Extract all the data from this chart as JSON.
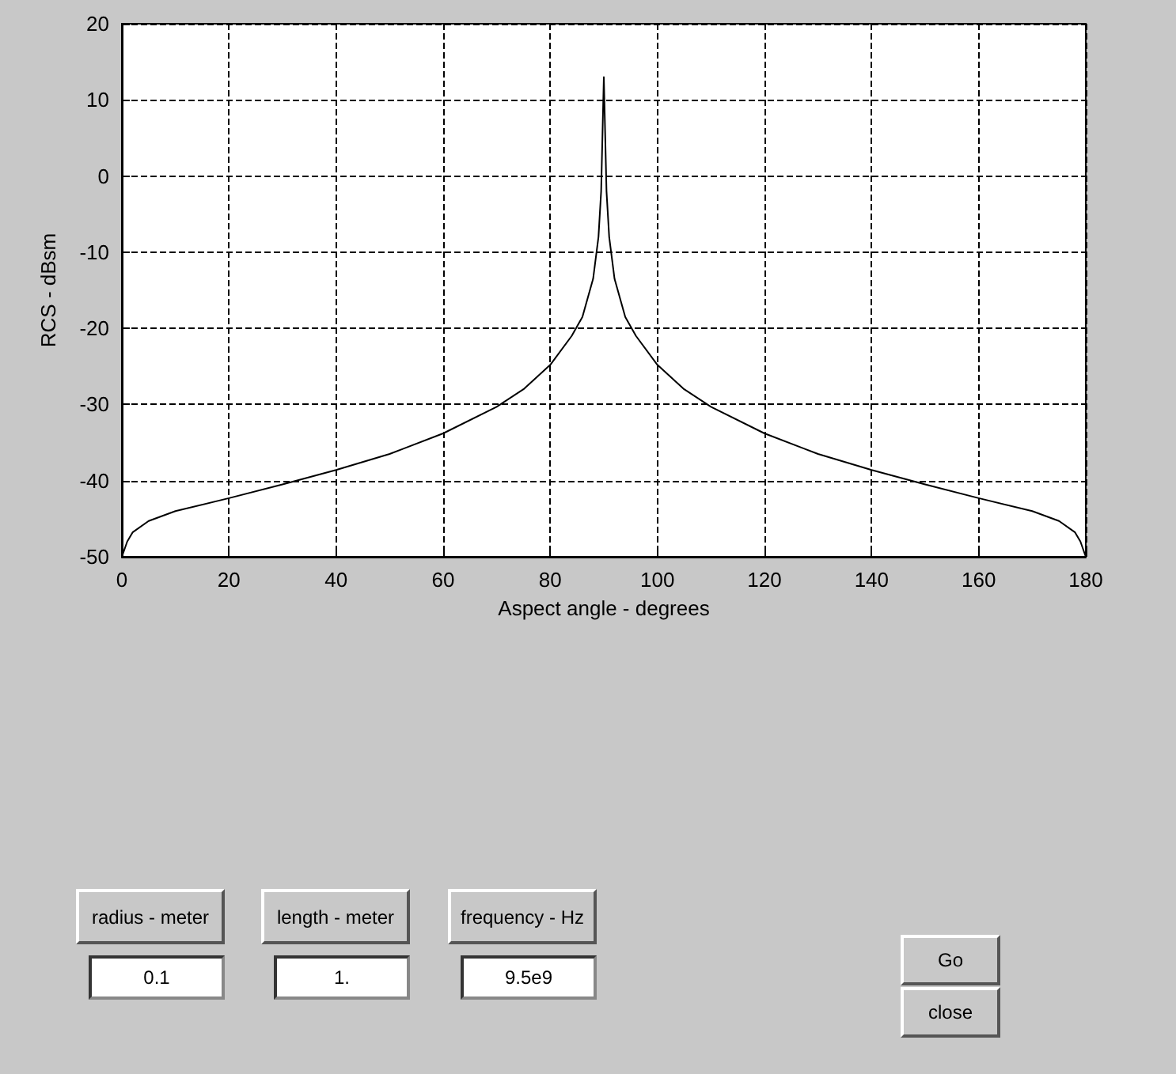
{
  "chart_data": [
    {
      "type": "line",
      "xlabel": "Aspect angle - degrees",
      "ylabel": "RCS - dBsm",
      "x": [
        0,
        1,
        2,
        5,
        10,
        20,
        30,
        40,
        50,
        60,
        70,
        75,
        80,
        84,
        86,
        88,
        89,
        89.5,
        90,
        90.5,
        91,
        92,
        94,
        96,
        100,
        105,
        110,
        120,
        130,
        140,
        150,
        160,
        170,
        175,
        178,
        179,
        180
      ],
      "series": [
        {
          "color": "#000000",
          "values": [
            -50,
            -48,
            -46.8,
            -45.3,
            -44,
            -42.3,
            -40.5,
            -38.6,
            -36.5,
            -33.8,
            -30.3,
            -28,
            -24.8,
            -21,
            -18.5,
            -13.5,
            -8,
            -2,
            13,
            -2,
            -8,
            -13.5,
            -18.5,
            -21,
            -24.8,
            -28,
            -30.3,
            -33.8,
            -36.5,
            -38.6,
            -40.5,
            -42.3,
            -44,
            -45.3,
            -46.8,
            -48,
            -50
          ]
        }
      ],
      "xlim": [
        0,
        180
      ],
      "xticks": [
        0,
        20,
        40,
        60,
        80,
        100,
        120,
        140,
        160,
        180
      ],
      "ylim": [
        -50,
        20
      ],
      "yticks": [
        -50,
        -40,
        -30,
        -20,
        -10,
        0,
        10,
        20
      ],
      "grid": true,
      "line_style": "solid",
      "marker": "none"
    },
    {
      "type": "other",
      "annotations": [
        "radius - meter",
        "0.1",
        "length - meter",
        "1.",
        "frequency - Hz",
        "9.5e9",
        "Go",
        "close"
      ]
    }
  ]
}
